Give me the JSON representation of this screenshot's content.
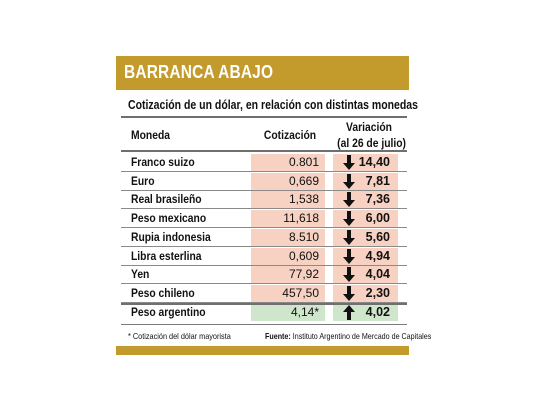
{
  "header": {
    "title": "BARRANCA ABAJO",
    "subtitle": "Cotización de un dólar, en relación con distintas monedas"
  },
  "columns": {
    "moneda": "Moneda",
    "cotizacion": "Cotización",
    "variacion_line1": "Variación",
    "variacion_line2": "(al 26 de julio)"
  },
  "rows": [
    {
      "moneda": "Franco suizo",
      "cotizacion": "0.801",
      "variacion": "14,40",
      "arrow": "arrow-down-icon"
    },
    {
      "moneda": "Euro",
      "cotizacion": "0,669",
      "variacion": "7,81",
      "arrow": "arrow-down-icon"
    },
    {
      "moneda": "Real brasileño",
      "cotizacion": "1,538",
      "variacion": "7,36",
      "arrow": "arrow-down-icon"
    },
    {
      "moneda": "Peso mexicano",
      "cotizacion": "11,618",
      "variacion": "6,00",
      "arrow": "arrow-down-icon"
    },
    {
      "moneda": "Rupia indonesia",
      "cotizacion": "8.510",
      "variacion": "5,60",
      "arrow": "arrow-down-icon"
    },
    {
      "moneda": "Libra esterlina",
      "cotizacion": "0,609",
      "variacion": "4,94",
      "arrow": "arrow-down-icon"
    },
    {
      "moneda": "Yen",
      "cotizacion": "77,92",
      "variacion": "4,04",
      "arrow": "arrow-down-icon"
    },
    {
      "moneda": "Peso chileno",
      "cotizacion": "457,50",
      "variacion": "2,30",
      "arrow": "arrow-down-icon"
    },
    {
      "moneda": "Peso argentino",
      "cotizacion": "4,14*",
      "variacion": "4,02",
      "arrow": "arrow-up-icon"
    }
  ],
  "footer": {
    "note": "* Cotización del dólar mayorista",
    "source_label": "Fuente:",
    "source_text": " Instituto Argentino de Mercado de Capitales"
  },
  "colors": {
    "band": "#c39b2c",
    "shade": "#f7d1c2",
    "shade_highlight": "#cfe6cd"
  }
}
